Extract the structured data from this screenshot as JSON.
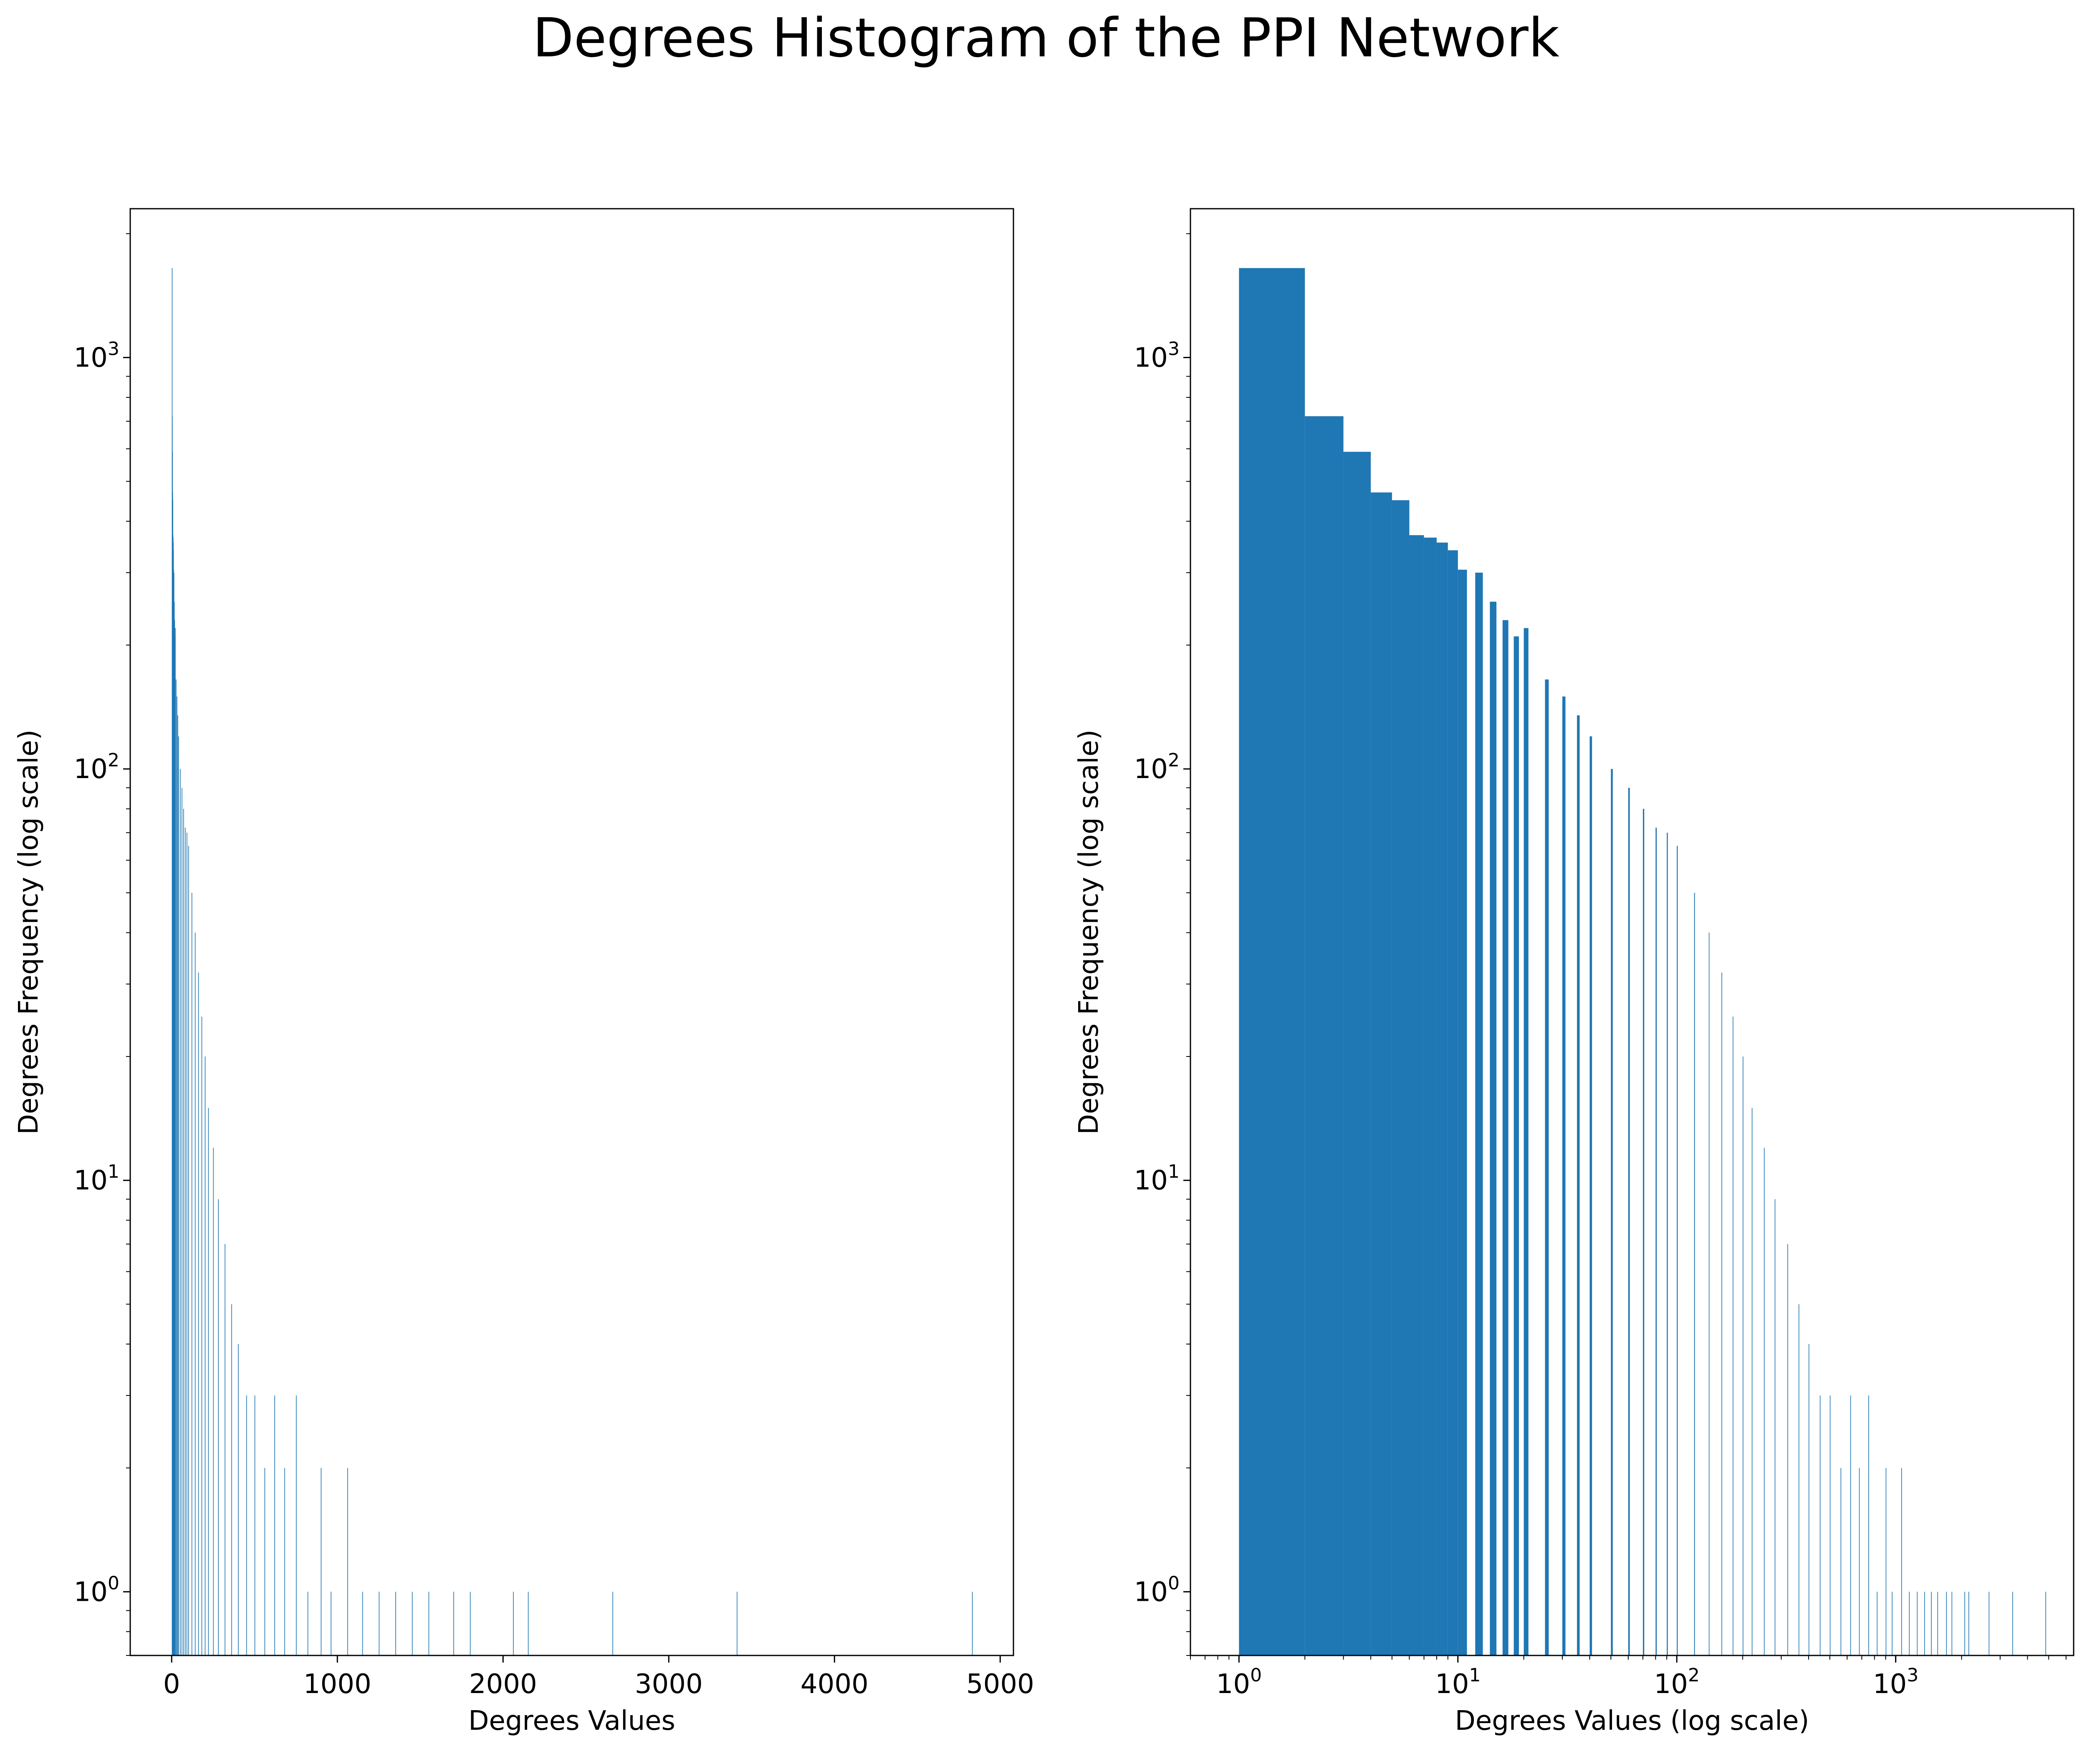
{
  "figure": {
    "title": "Degrees Histogram of the PPI Network",
    "accent_color": "#1f77b4"
  },
  "chart_data": [
    {
      "type": "bar",
      "subtype": "histogram",
      "xlabel": "Degrees Values",
      "ylabel": "Degrees Frequency (log scale)",
      "x_scale": "linear",
      "y_scale": "log",
      "xlim": [
        -250,
        5080
      ],
      "ylim": [
        0.7,
        2300
      ],
      "x_ticks": [
        0,
        1000,
        2000,
        3000,
        4000,
        5000
      ],
      "x_tick_labels": [
        "0",
        "1000",
        "2000",
        "3000",
        "4000",
        "5000"
      ],
      "y_ticks": [
        1,
        10,
        100,
        1000
      ],
      "y_tick_labels": [
        "10^0",
        "10^1",
        "10^2",
        "10^3"
      ],
      "grid": false,
      "color": "#1f77b4",
      "bin_width": 1,
      "bins": [
        {
          "x": 1,
          "count": 1650
        },
        {
          "x": 2,
          "count": 720
        },
        {
          "x": 3,
          "count": 590
        },
        {
          "x": 4,
          "count": 470
        },
        {
          "x": 5,
          "count": 450
        },
        {
          "x": 6,
          "count": 370
        },
        {
          "x": 7,
          "count": 365
        },
        {
          "x": 8,
          "count": 355
        },
        {
          "x": 9,
          "count": 340
        },
        {
          "x": 10,
          "count": 305
        },
        {
          "x": 12,
          "count": 300
        },
        {
          "x": 14,
          "count": 255
        },
        {
          "x": 16,
          "count": 230
        },
        {
          "x": 18,
          "count": 210
        },
        {
          "x": 20,
          "count": 220
        },
        {
          "x": 25,
          "count": 165
        },
        {
          "x": 30,
          "count": 150
        },
        {
          "x": 35,
          "count": 135
        },
        {
          "x": 40,
          "count": 120
        },
        {
          "x": 50,
          "count": 100
        },
        {
          "x": 60,
          "count": 90
        },
        {
          "x": 70,
          "count": 80
        },
        {
          "x": 80,
          "count": 72
        },
        {
          "x": 90,
          "count": 70
        },
        {
          "x": 100,
          "count": 65
        },
        {
          "x": 120,
          "count": 50
        },
        {
          "x": 140,
          "count": 40
        },
        {
          "x": 160,
          "count": 32
        },
        {
          "x": 180,
          "count": 25
        },
        {
          "x": 200,
          "count": 20
        },
        {
          "x": 220,
          "count": 15
        },
        {
          "x": 250,
          "count": 12
        },
        {
          "x": 280,
          "count": 9
        },
        {
          "x": 320,
          "count": 7
        },
        {
          "x": 360,
          "count": 5
        },
        {
          "x": 400,
          "count": 4
        },
        {
          "x": 450,
          "count": 3
        },
        {
          "x": 500,
          "count": 3
        },
        {
          "x": 560,
          "count": 2
        },
        {
          "x": 620,
          "count": 3
        },
        {
          "x": 680,
          "count": 2
        },
        {
          "x": 750,
          "count": 3
        },
        {
          "x": 820,
          "count": 1
        },
        {
          "x": 900,
          "count": 2
        },
        {
          "x": 960,
          "count": 1
        },
        {
          "x": 1060,
          "count": 2
        },
        {
          "x": 1150,
          "count": 1
        },
        {
          "x": 1250,
          "count": 1
        },
        {
          "x": 1350,
          "count": 1
        },
        {
          "x": 1450,
          "count": 1
        },
        {
          "x": 1550,
          "count": 1
        },
        {
          "x": 1700,
          "count": 1
        },
        {
          "x": 1800,
          "count": 1
        },
        {
          "x": 2060,
          "count": 1
        },
        {
          "x": 2150,
          "count": 1
        },
        {
          "x": 2660,
          "count": 1
        },
        {
          "x": 3410,
          "count": 1
        },
        {
          "x": 4830,
          "count": 1
        }
      ]
    },
    {
      "type": "bar",
      "subtype": "histogram",
      "xlabel": "Degrees Values (log scale)",
      "ylabel": "Degrees Frequency (log scale)",
      "x_scale": "log",
      "y_scale": "log",
      "xlim": [
        0.6,
        6500
      ],
      "ylim": [
        0.7,
        2300
      ],
      "x_ticks": [
        1,
        10,
        100,
        1000
      ],
      "x_tick_labels": [
        "10^0",
        "10^1",
        "10^2",
        "10^3"
      ],
      "y_ticks": [
        1,
        10,
        100,
        1000
      ],
      "y_tick_labels": [
        "10^0",
        "10^1",
        "10^2",
        "10^3"
      ],
      "grid": false,
      "color": "#1f77b4",
      "bin_width": 1,
      "bins": [
        {
          "x": 1,
          "count": 1650
        },
        {
          "x": 2,
          "count": 720
        },
        {
          "x": 3,
          "count": 590
        },
        {
          "x": 4,
          "count": 470
        },
        {
          "x": 5,
          "count": 450
        },
        {
          "x": 6,
          "count": 370
        },
        {
          "x": 7,
          "count": 365
        },
        {
          "x": 8,
          "count": 355
        },
        {
          "x": 9,
          "count": 340
        },
        {
          "x": 10,
          "count": 305
        },
        {
          "x": 12,
          "count": 300
        },
        {
          "x": 14,
          "count": 255
        },
        {
          "x": 16,
          "count": 230
        },
        {
          "x": 18,
          "count": 210
        },
        {
          "x": 20,
          "count": 220
        },
        {
          "x": 25,
          "count": 165
        },
        {
          "x": 30,
          "count": 150
        },
        {
          "x": 35,
          "count": 135
        },
        {
          "x": 40,
          "count": 120
        },
        {
          "x": 50,
          "count": 100
        },
        {
          "x": 60,
          "count": 90
        },
        {
          "x": 70,
          "count": 80
        },
        {
          "x": 80,
          "count": 72
        },
        {
          "x": 90,
          "count": 70
        },
        {
          "x": 100,
          "count": 65
        },
        {
          "x": 120,
          "count": 50
        },
        {
          "x": 140,
          "count": 40
        },
        {
          "x": 160,
          "count": 32
        },
        {
          "x": 180,
          "count": 25
        },
        {
          "x": 200,
          "count": 20
        },
        {
          "x": 220,
          "count": 15
        },
        {
          "x": 250,
          "count": 12
        },
        {
          "x": 280,
          "count": 9
        },
        {
          "x": 320,
          "count": 7
        },
        {
          "x": 360,
          "count": 5
        },
        {
          "x": 400,
          "count": 4
        },
        {
          "x": 450,
          "count": 3
        },
        {
          "x": 500,
          "count": 3
        },
        {
          "x": 560,
          "count": 2
        },
        {
          "x": 620,
          "count": 3
        },
        {
          "x": 680,
          "count": 2
        },
        {
          "x": 750,
          "count": 3
        },
        {
          "x": 820,
          "count": 1
        },
        {
          "x": 900,
          "count": 2
        },
        {
          "x": 960,
          "count": 1
        },
        {
          "x": 1060,
          "count": 2
        },
        {
          "x": 1150,
          "count": 1
        },
        {
          "x": 1250,
          "count": 1
        },
        {
          "x": 1350,
          "count": 1
        },
        {
          "x": 1450,
          "count": 1
        },
        {
          "x": 1550,
          "count": 1
        },
        {
          "x": 1700,
          "count": 1
        },
        {
          "x": 1800,
          "count": 1
        },
        {
          "x": 2060,
          "count": 1
        },
        {
          "x": 2150,
          "count": 1
        },
        {
          "x": 2660,
          "count": 1
        },
        {
          "x": 3410,
          "count": 1
        },
        {
          "x": 4830,
          "count": 1
        }
      ]
    }
  ]
}
